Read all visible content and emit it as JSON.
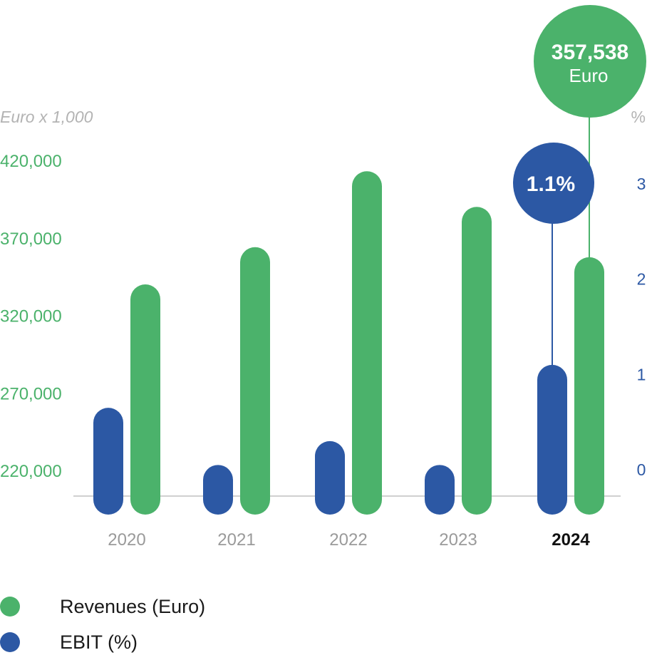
{
  "colors": {
    "revenue": "#4bb26b",
    "ebit": "#2c58a4",
    "baseline": "#b5b5b5",
    "muted": "#b3b3b3"
  },
  "chart_data": {
    "type": "bar",
    "left_axis_unit": "Euro x 1,000",
    "right_axis_unit": "%",
    "categories": [
      "2020",
      "2021",
      "2022",
      "2023",
      "2024"
    ],
    "highlight_category": "2024",
    "left_ticks": [
      "420,000",
      "370,000",
      "320,000",
      "270,000",
      "220,000"
    ],
    "right_ticks": [
      "3",
      "2",
      "1",
      "0"
    ],
    "left_ylim": [
      220000,
      420000
    ],
    "right_ylim": [
      0,
      3
    ],
    "series": [
      {
        "name": "EBIT (%)",
        "axis": "right",
        "values": [
          0.65,
          0.05,
          0.3,
          0.05,
          1.1
        ]
      },
      {
        "name": "Revenues (Euro)",
        "axis": "left",
        "values": [
          340000,
          364000,
          413000,
          390000,
          357538
        ]
      }
    ],
    "annotations": {
      "revenue": {
        "value": "357,538",
        "unit": "Euro",
        "category": "2024"
      },
      "ebit": {
        "value": "1.1%",
        "category": "2024"
      }
    }
  },
  "legend": [
    {
      "label": "Revenues (Euro)",
      "color": "#4bb26b"
    },
    {
      "label": "EBIT (%)",
      "color": "#2c58a4"
    }
  ]
}
